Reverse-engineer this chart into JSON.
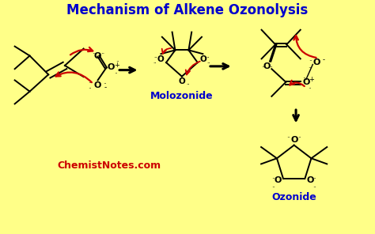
{
  "title": "Mechanism of Alkene Ozonolysis",
  "title_color": "#0000CC",
  "title_fontsize": 12,
  "background_color": "#FFFF88",
  "watermark": "ChemistNotes.com",
  "watermark_color": "#CC0000",
  "label_molozonide": "Molozonide",
  "label_ozonide": "Ozonide",
  "label_color": "#0000CC",
  "bond_color": "#000000",
  "red": "#CC0000"
}
